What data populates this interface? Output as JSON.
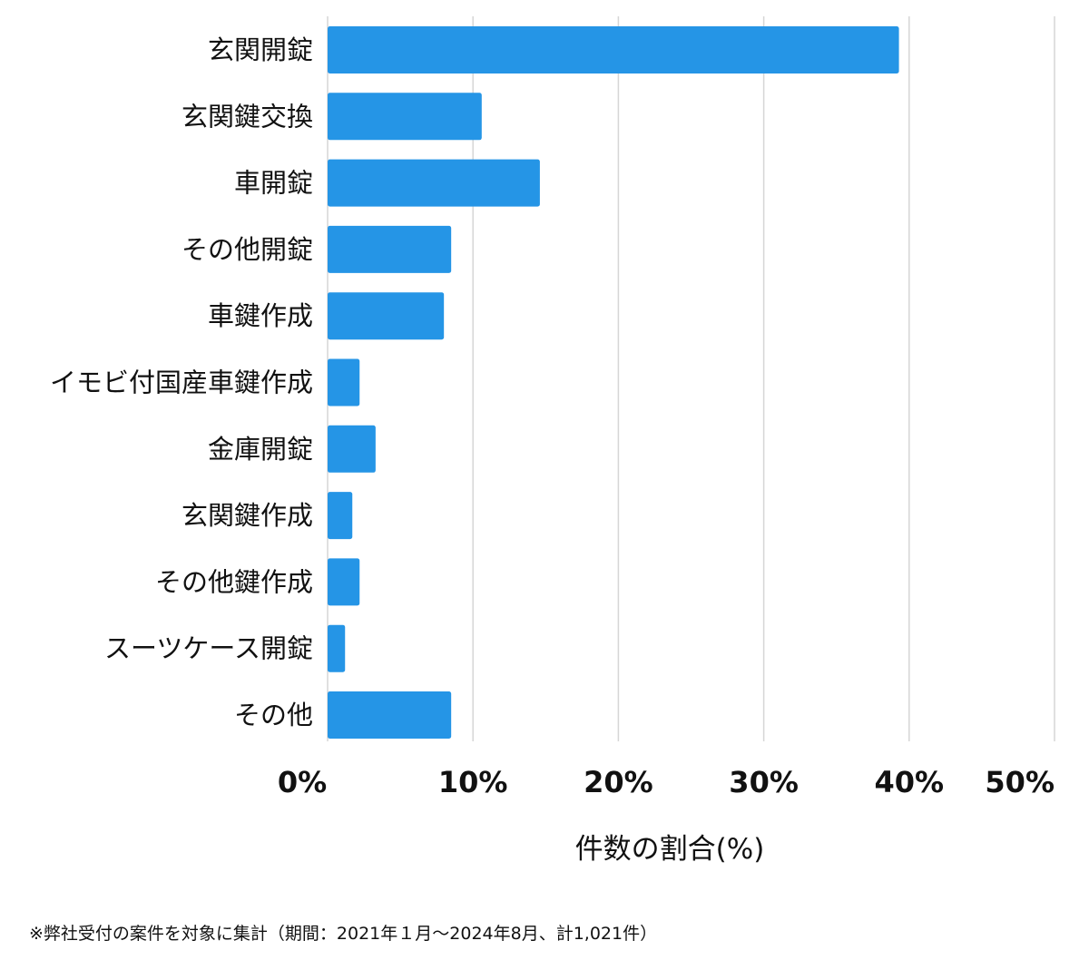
{
  "chart_data": {
    "type": "bar",
    "orientation": "horizontal",
    "categories": [
      "玄関開錠",
      "玄関鍵交換",
      "車開錠",
      "その他開錠",
      "車鍵作成",
      "イモビ付国産車鍵作成",
      "金庫開錠",
      "玄関鍵作成",
      "その他鍵作成",
      "スーツケース開錠",
      "その他"
    ],
    "values": [
      39.3,
      10.6,
      14.6,
      8.5,
      8.0,
      2.2,
      3.3,
      1.7,
      2.2,
      1.2,
      8.5
    ],
    "xlim": [
      0,
      50
    ],
    "xticks": [
      0,
      10,
      20,
      30,
      40,
      50
    ],
    "tick_labels": [
      "0%",
      "10%",
      "20%",
      "30%",
      "40%",
      "50%"
    ],
    "xlabel": "件数の割合(%)",
    "ylabel": "",
    "title": "",
    "grid": "vertical",
    "bar_color": "#2595e6"
  },
  "footnote": "※弊社受付の案件を対象に集計（期間：2021年１月〜2024年8月、計1,021件）"
}
